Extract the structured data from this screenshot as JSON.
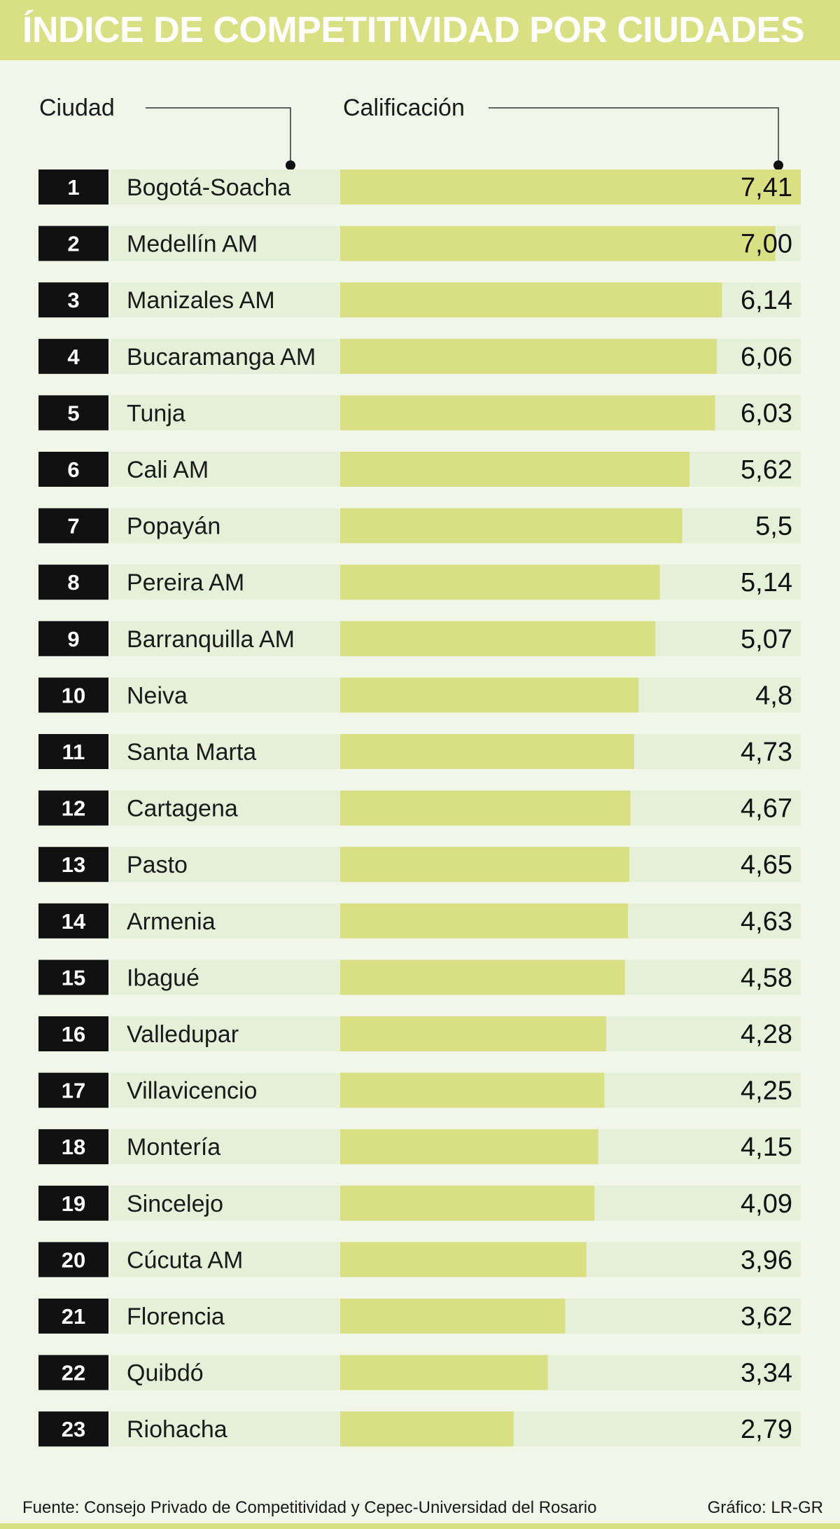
{
  "chart_data": {
    "type": "bar",
    "orientation": "horizontal",
    "title": "ÍNDICE DE COMPETITIVIDAD POR CIUDADES",
    "category_header": "Ciudad",
    "value_header": "Calificación",
    "xlim": [
      0,
      7.41
    ],
    "rows": [
      {
        "rank": "1",
        "city": "Bogotá-Soacha",
        "value": 7.41,
        "label": "7,41"
      },
      {
        "rank": "2",
        "city": "Medellín AM",
        "value": 7.0,
        "label": "7,00"
      },
      {
        "rank": "3",
        "city": "Manizales AM",
        "value": 6.14,
        "label": "6,14"
      },
      {
        "rank": "4",
        "city": "Bucaramanga AM",
        "value": 6.06,
        "label": "6,06"
      },
      {
        "rank": "5",
        "city": "Tunja",
        "value": 6.03,
        "label": "6,03"
      },
      {
        "rank": "6",
        "city": "Cali AM",
        "value": 5.62,
        "label": "5,62"
      },
      {
        "rank": "7",
        "city": "Popayán",
        "value": 5.5,
        "label": "5,5"
      },
      {
        "rank": "8",
        "city": "Pereira AM",
        "value": 5.14,
        "label": "5,14"
      },
      {
        "rank": "9",
        "city": "Barranquilla AM",
        "value": 5.07,
        "label": "5,07"
      },
      {
        "rank": "10",
        "city": "Neiva",
        "value": 4.8,
        "label": "4,8"
      },
      {
        "rank": "11",
        "city": "Santa Marta",
        "value": 4.73,
        "label": "4,73"
      },
      {
        "rank": "12",
        "city": "Cartagena",
        "value": 4.67,
        "label": "4,67"
      },
      {
        "rank": "13",
        "city": "Pasto",
        "value": 4.65,
        "label": "4,65"
      },
      {
        "rank": "14",
        "city": "Armenia",
        "value": 4.63,
        "label": "4,63"
      },
      {
        "rank": "15",
        "city": "Ibagué",
        "value": 4.58,
        "label": "4,58"
      },
      {
        "rank": "16",
        "city": "Valledupar",
        "value": 4.28,
        "label": "4,28"
      },
      {
        "rank": "17",
        "city": "Villavicencio",
        "value": 4.25,
        "label": "4,25"
      },
      {
        "rank": "18",
        "city": "Montería",
        "value": 4.15,
        "label": "4,15"
      },
      {
        "rank": "19",
        "city": "Sincelejo",
        "value": 4.09,
        "label": "4,09"
      },
      {
        "rank": "20",
        "city": "Cúcuta AM",
        "value": 3.96,
        "label": "3,96"
      },
      {
        "rank": "21",
        "city": "Florencia",
        "value": 3.62,
        "label": "3,62"
      },
      {
        "rank": "22",
        "city": "Quibdó",
        "value": 3.34,
        "label": "3,34"
      },
      {
        "rank": "23",
        "city": "Riohacha",
        "value": 2.79,
        "label": "2,79"
      }
    ],
    "source": "Fuente: Consejo Privado de Competitividad y Cepec-Universidad del Rosario",
    "credit": "Gráfico: LR-GR"
  },
  "colors": {
    "background": "#f1f6e9",
    "accent": "#d8e083",
    "row_background": "#e6efd8",
    "rank_box": "#111111",
    "text": "#1a1a1a"
  }
}
